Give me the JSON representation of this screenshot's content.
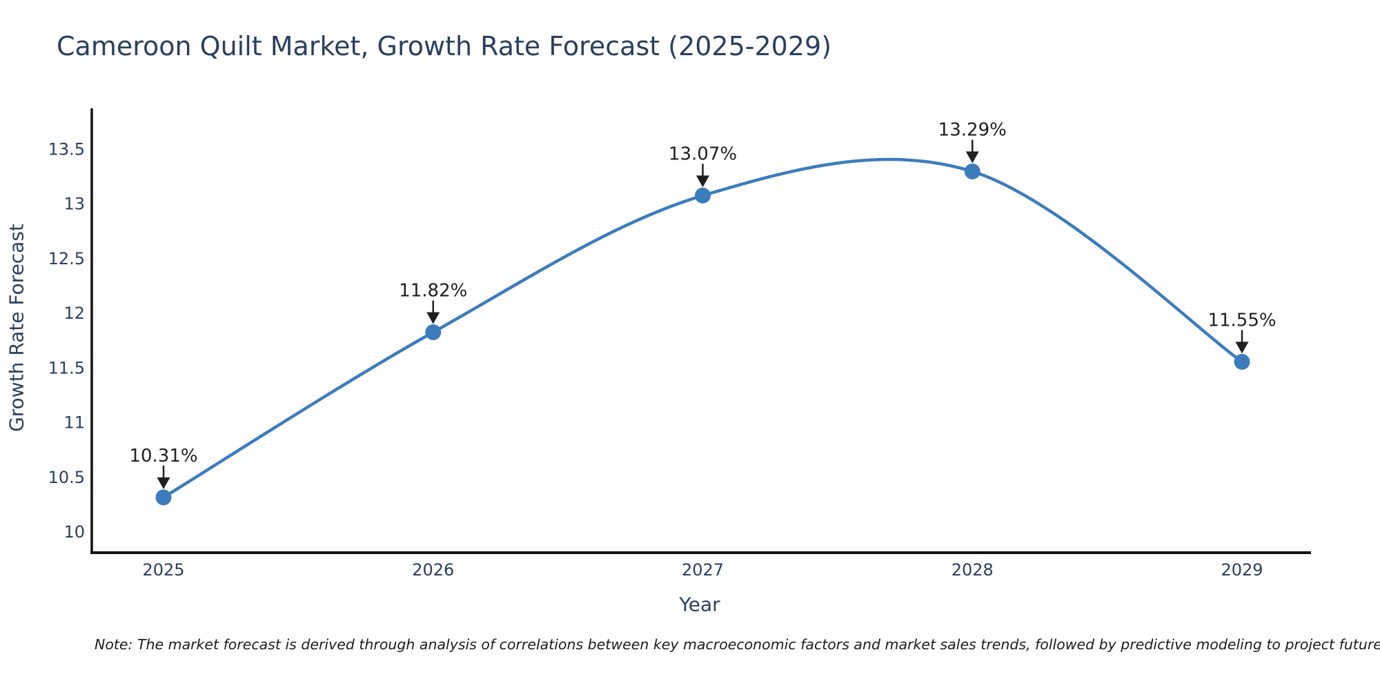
{
  "chart_data": {
    "type": "line",
    "title": "Cameroon Quilt Market, Growth Rate Forecast (2025-2029)",
    "xlabel": "Year",
    "ylabel": "Growth Rate Forecast",
    "categories": [
      "2025",
      "2026",
      "2027",
      "2028",
      "2029"
    ],
    "series": [
      {
        "name": "Growth Rate Forecast",
        "values": [
          10.31,
          11.82,
          13.07,
          13.29,
          11.55
        ],
        "point_labels": [
          "10.31%",
          "11.82%",
          "13.07%",
          "13.29%",
          "11.55%"
        ]
      }
    ],
    "yticks": [
      10,
      10.5,
      11,
      11.5,
      12,
      12.5,
      13,
      13.5
    ],
    "ytick_labels": [
      "10",
      "10.5",
      "11",
      "11.5",
      "12",
      "12.5",
      "13",
      "13.5"
    ],
    "ylim": [
      9.8,
      13.87
    ],
    "grid": false,
    "legend_position": "none",
    "line_shape": "smooth-spline",
    "colors": {
      "line": "#3C7CBD",
      "marker": "#3C7CBD",
      "axis": "#111111",
      "labels": "#2a3f5f",
      "annotation": "#1f1f1f"
    },
    "note": "Note: The market forecast is derived through analysis of correlations between key macroeconomic factors and market sales trends, followed by predictive modeling to project future sal"
  }
}
